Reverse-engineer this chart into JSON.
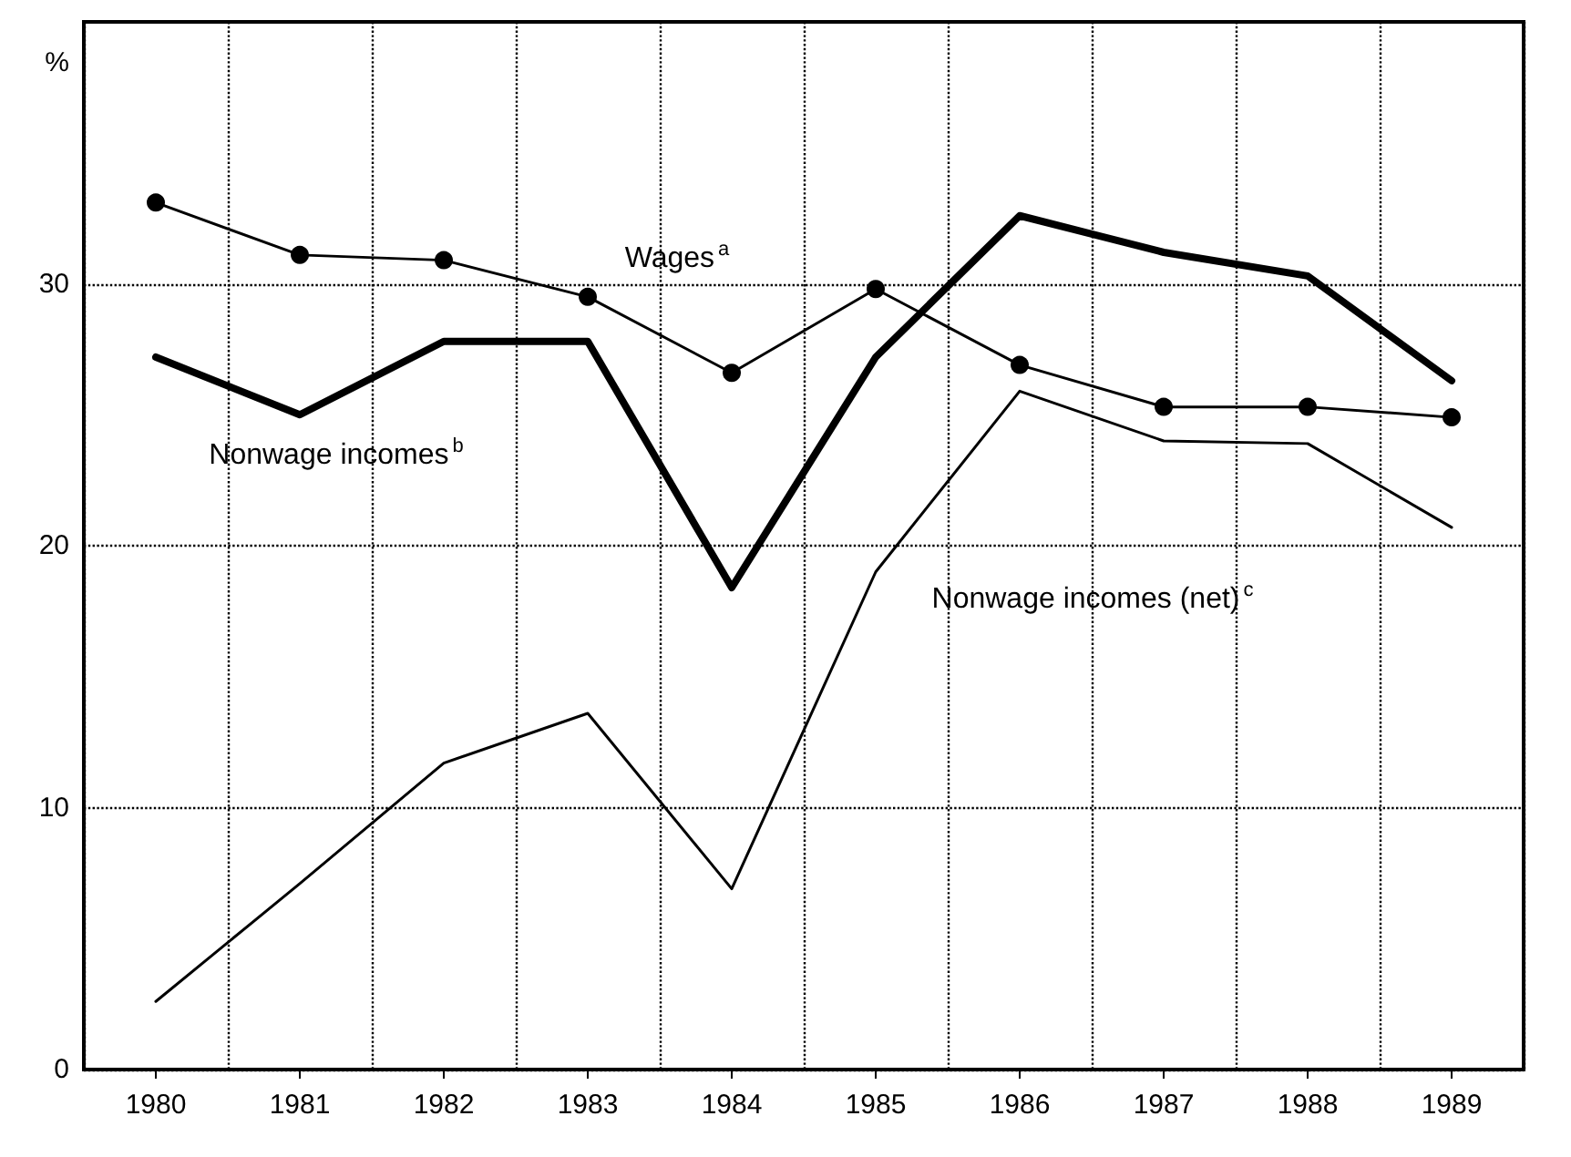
{
  "chart_data": {
    "type": "line",
    "ylabel": "%",
    "categories": [
      "1980",
      "1981",
      "1982",
      "1983",
      "1984",
      "1985",
      "1986",
      "1987",
      "1988",
      "1989"
    ],
    "series": [
      {
        "name": "Wages$^{a}$",
        "color": "#000000",
        "marker": "circle",
        "values": [
          33.1,
          31.1,
          30.9,
          29.5,
          26.6,
          29.8,
          26.9,
          25.3,
          25.3,
          24.9
        ]
      },
      {
        "name": "Nonwage incomes$^{b}$",
        "color": "#000000",
        "values": [
          27.2,
          25.0,
          27.8,
          27.8,
          18.4,
          27.2,
          32.6,
          31.2,
          30.3,
          26.3
        ]
      },
      {
        "name": "Nonwage incomes (net)$^{c}$",
        "color": "#000000",
        "values": [
          2.6,
          7.1,
          11.7,
          13.6,
          6.9,
          19.0,
          25.9,
          24.0,
          23.9,
          20.7
        ]
      }
    ],
    "ylim": [
      0,
      40
    ],
    "yticks": [
      0,
      10,
      20,
      30
    ],
    "grid": true,
    "legend": false,
    "line_style": "solid"
  }
}
